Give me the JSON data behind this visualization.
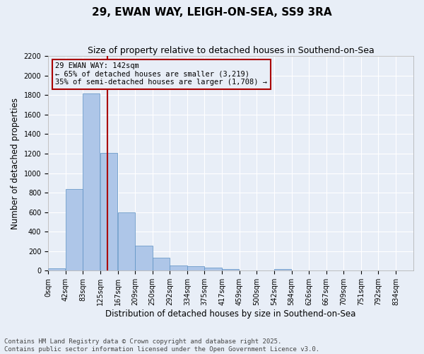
{
  "title1": "29, EWAN WAY, LEIGH-ON-SEA, SS9 3RA",
  "title2": "Size of property relative to detached houses in Southend-on-Sea",
  "xlabel": "Distribution of detached houses by size in Southend-on-Sea",
  "ylabel": "Number of detached properties",
  "bin_labels": [
    "0sqm",
    "42sqm",
    "83sqm",
    "125sqm",
    "167sqm",
    "209sqm",
    "250sqm",
    "292sqm",
    "334sqm",
    "375sqm",
    "417sqm",
    "459sqm",
    "500sqm",
    "542sqm",
    "584sqm",
    "626sqm",
    "667sqm",
    "709sqm",
    "751sqm",
    "792sqm",
    "834sqm"
  ],
  "bin_edges": [
    0,
    42,
    83,
    125,
    167,
    209,
    250,
    292,
    334,
    375,
    417,
    459,
    500,
    542,
    584,
    626,
    667,
    709,
    751,
    792,
    834
  ],
  "counts": [
    25,
    840,
    1820,
    1210,
    600,
    260,
    135,
    50,
    45,
    35,
    20,
    5,
    0,
    15,
    0,
    0,
    0,
    0,
    0,
    0
  ],
  "bar_color": "#aec6e8",
  "bar_edgecolor": "#5a8fc2",
  "bg_color": "#e8eef7",
  "grid_color": "#ffffff",
  "vline_x": 142,
  "vline_color": "#aa0000",
  "annotation_title": "29 EWAN WAY: 142sqm",
  "annotation_line1": "← 65% of detached houses are smaller (3,219)",
  "annotation_line2": "35% of semi-detached houses are larger (1,708) →",
  "annotation_box_color": "#aa0000",
  "ylim": [
    0,
    2200
  ],
  "yticks": [
    0,
    200,
    400,
    600,
    800,
    1000,
    1200,
    1400,
    1600,
    1800,
    2000,
    2200
  ],
  "footer1": "Contains HM Land Registry data © Crown copyright and database right 2025.",
  "footer2": "Contains public sector information licensed under the Open Government Licence v3.0.",
  "title_fontsize": 11,
  "subtitle_fontsize": 9,
  "axis_label_fontsize": 8.5,
  "tick_fontsize": 7,
  "annotation_fontsize": 7.5,
  "footer_fontsize": 6.5
}
